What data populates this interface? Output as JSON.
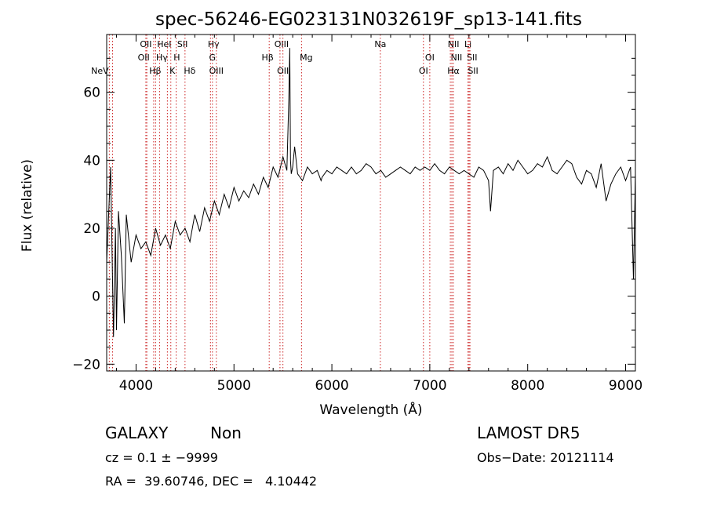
{
  "chart_data": {
    "type": "line",
    "title": "spec-56246-EG023131N032619F_sp13-141.fits",
    "xlabel": "Wavelength (Å)",
    "ylabel": "Flux (relative)",
    "xlim": [
      3700,
      9100
    ],
    "ylim": [
      -22,
      77
    ],
    "xticks": [
      4000,
      5000,
      6000,
      7000,
      8000,
      9000
    ],
    "yticks": [
      -20,
      0,
      20,
      40,
      60
    ],
    "grid": false,
    "line_color": "#000000",
    "marker_color": "#cc2222",
    "series": [
      {
        "x": [
          3700,
          3740,
          3770,
          3790,
          3800,
          3820,
          3850,
          3880,
          3900,
          3950,
          4000,
          4050,
          4100,
          4150,
          4200,
          4250,
          4300,
          4350,
          4400,
          4450,
          4500,
          4550,
          4600,
          4650,
          4700,
          4750,
          4800,
          4850,
          4900,
          4950,
          5000,
          5050,
          5100,
          5150,
          5200,
          5250,
          5300,
          5350,
          5400,
          5450,
          5500,
          5540,
          5560,
          5570,
          5577,
          5585,
          5600,
          5620,
          5650,
          5700,
          5750,
          5800,
          5850,
          5890,
          5900,
          5950,
          6000,
          6050,
          6100,
          6150,
          6200,
          6250,
          6300,
          6350,
          6400,
          6450,
          6500,
          6550,
          6600,
          6650,
          6700,
          6750,
          6800,
          6850,
          6900,
          6950,
          7000,
          7050,
          7100,
          7150,
          7200,
          7250,
          7300,
          7350,
          7400,
          7450,
          7500,
          7550,
          7600,
          7620,
          7650,
          7700,
          7750,
          7800,
          7850,
          7900,
          7950,
          8000,
          8050,
          8100,
          8150,
          8200,
          8250,
          8300,
          8350,
          8400,
          8450,
          8500,
          8550,
          8600,
          8650,
          8700,
          8750,
          8800,
          8850,
          8900,
          8950,
          9000,
          9050,
          9080,
          9100
        ],
        "y": [
          10,
          38,
          -12,
          20,
          -10,
          25,
          12,
          -8,
          24,
          10,
          18,
          14,
          16,
          12,
          20,
          15,
          18,
          14,
          22,
          18,
          20,
          16,
          24,
          19,
          26,
          22,
          28,
          24,
          30,
          26,
          32,
          28,
          31,
          29,
          33,
          30,
          35,
          32,
          38,
          35,
          41,
          37,
          58,
          73,
          40,
          36,
          38,
          44,
          36,
          34,
          38,
          36,
          37,
          34,
          35,
          37,
          36,
          38,
          37,
          36,
          38,
          36,
          37,
          39,
          38,
          36,
          37,
          35,
          36,
          37,
          38,
          37,
          36,
          38,
          37,
          38,
          37,
          39,
          37,
          36,
          38,
          37,
          36,
          37,
          36,
          35,
          38,
          37,
          34,
          25,
          37,
          38,
          36,
          39,
          37,
          40,
          38,
          36,
          37,
          39,
          38,
          41,
          37,
          36,
          38,
          40,
          39,
          35,
          33,
          37,
          36,
          32,
          39,
          28,
          33,
          36,
          38,
          34,
          38,
          5,
          36
        ]
      }
    ],
    "line_markers": [
      {
        "name": "NeV",
        "wl": 3727,
        "row": 3,
        "xshift": -12
      },
      {
        "name": "OII",
        "wl": 3760,
        "row": -1,
        "xshift": 0
      },
      {
        "name": "OII",
        "wl": 4100,
        "row": 0,
        "xshift": 0
      },
      {
        "name": "OII",
        "wl": 4110,
        "row": 1,
        "xshift": -4
      },
      {
        "name": "Hβ",
        "wl": 4180,
        "row": 2,
        "xshift": 2
      },
      {
        "name": "Hγ",
        "wl": 4200,
        "row": 1,
        "xshift": 8
      },
      {
        "name": "HeI",
        "wl": 4240,
        "row": 0,
        "xshift": 6
      },
      {
        "name": "H",
        "wl": 4320,
        "row": 1,
        "xshift": 12
      },
      {
        "name": "K",
        "wl": 4355,
        "row": 2,
        "xshift": 2
      },
      {
        "name": "SII",
        "wl": 4410,
        "row": 0,
        "xshift": 8
      },
      {
        "name": "Hδ",
        "wl": 4500,
        "row": 2,
        "xshift": 6
      },
      {
        "name": "Hγ",
        "wl": 4760,
        "row": 0,
        "xshift": 4
      },
      {
        "name": "G",
        "wl": 4780,
        "row": 1,
        "xshift": 0
      },
      {
        "name": "OIII",
        "wl": 4820,
        "row": 2,
        "xshift": 0
      },
      {
        "name": "Hβ",
        "wl": 5360,
        "row": 1,
        "xshift": -2
      },
      {
        "name": "OIII",
        "wl": 5470,
        "row": 0,
        "xshift": 2
      },
      {
        "name": "OII",
        "wl": 5500,
        "row": 2,
        "xshift": 0
      },
      {
        "name": "Mg",
        "wl": 5690,
        "row": 1,
        "xshift": 6
      },
      {
        "name": "Na",
        "wl": 6495,
        "row": 0,
        "xshift": 0
      },
      {
        "name": "OI",
        "wl": 6935,
        "row": 2,
        "xshift": 0
      },
      {
        "name": "OI",
        "wl": 7000,
        "row": 1,
        "xshift": 0
      },
      {
        "name": "NII",
        "wl": 7210,
        "row": 0,
        "xshift": 4
      },
      {
        "name": "NII",
        "wl": 7240,
        "row": 1,
        "xshift": 4
      },
      {
        "name": "Hα",
        "wl": 7225,
        "row": 2,
        "xshift": 2
      },
      {
        "name": "Li",
        "wl": 7390,
        "row": 0,
        "xshift": 0
      },
      {
        "name": "SII",
        "wl": 7400,
        "row": 1,
        "xshift": 4
      },
      {
        "name": "SII",
        "wl": 7410,
        "row": 2,
        "xshift": 4
      }
    ]
  },
  "info": {
    "object_class": "GALAXY",
    "subclass": "Non",
    "redshift_line": "cz = 0.1 ± −9999",
    "coords_line": "RA =  39.60746, DEC =   4.10442",
    "survey": "LAMOST DR5",
    "obs_date": "Obs−Date: 20121114"
  }
}
